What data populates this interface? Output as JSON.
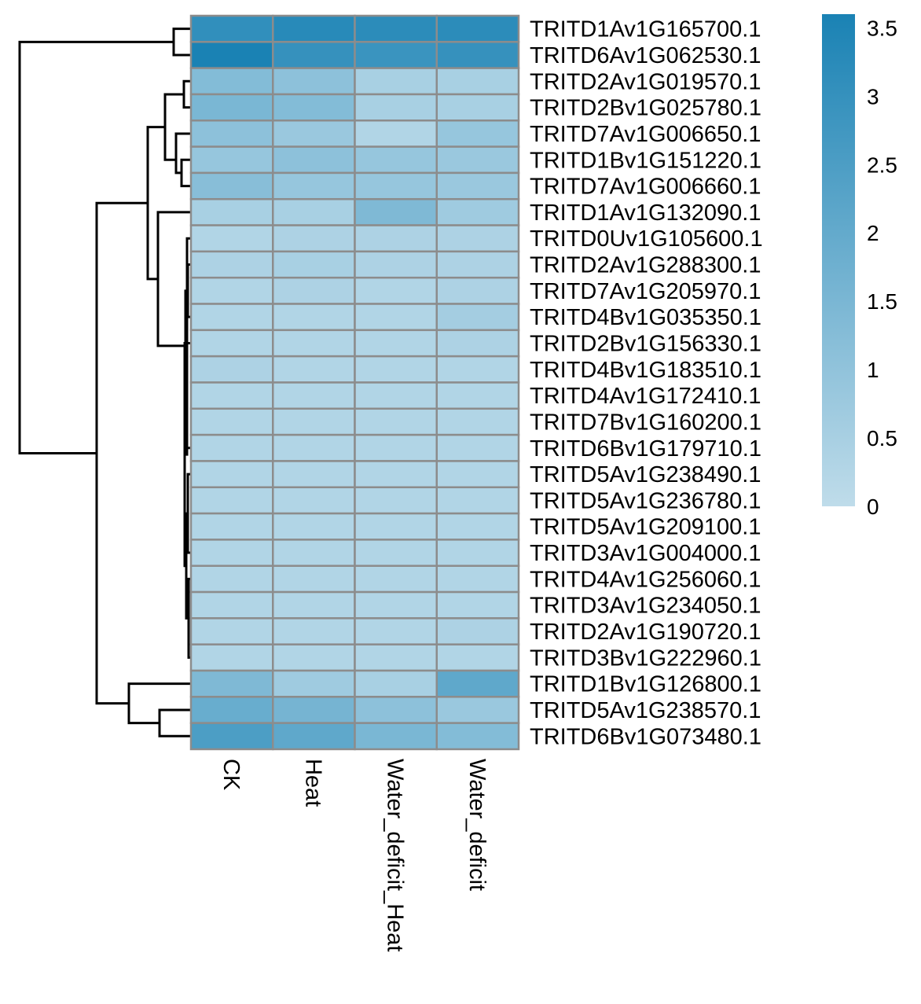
{
  "chart_data": {
    "type": "heatmap",
    "title": "",
    "columns": [
      "CK",
      "Heat",
      "Water_deficit_Heat",
      "Water_deficit"
    ],
    "rows": [
      "TRITD1Av1G165700.1",
      "TRITD6Av1G062530.1",
      "TRITD2Av1G019570.1",
      "TRITD2Bv1G025780.1",
      "TRITD7Av1G006650.1",
      "TRITD1Bv1G151220.1",
      "TRITD7Av1G006660.1",
      "TRITD1Av1G132090.1",
      "TRITD0Uv1G105600.1",
      "TRITD2Av1G288300.1",
      "TRITD7Av1G205970.1",
      "TRITD4Bv1G035350.1",
      "TRITD2Bv1G156330.1",
      "TRITD4Bv1G183510.1",
      "TRITD4Av1G172410.1",
      "TRITD7Bv1G160200.1",
      "TRITD6Bv1G179710.1",
      "TRITD5Av1G238490.1",
      "TRITD5Av1G236780.1",
      "TRITD5Av1G209100.1",
      "TRITD3Av1G004000.1",
      "TRITD4Av1G256060.1",
      "TRITD3Av1G234050.1",
      "TRITD2Av1G190720.1",
      "TRITD3Bv1G222960.1",
      "TRITD1Bv1G126800.1",
      "TRITD5Av1G238570.1",
      "TRITD6Bv1G073480.1"
    ],
    "values": [
      [
        3.1,
        3.3,
        3.2,
        3.2
      ],
      [
        3.6,
        3.0,
        2.9,
        3.0
      ],
      [
        1.3,
        1.1,
        0.5,
        0.5
      ],
      [
        1.5,
        1.3,
        0.5,
        0.5
      ],
      [
        1.1,
        0.8,
        0.3,
        0.9
      ],
      [
        0.9,
        1.1,
        0.9,
        0.8
      ],
      [
        1.2,
        0.9,
        0.9,
        0.8
      ],
      [
        0.5,
        0.5,
        1.4,
        0.7
      ],
      [
        0.3,
        0.4,
        0.4,
        0.4
      ],
      [
        0.4,
        0.5,
        0.4,
        0.4
      ],
      [
        0.3,
        0.4,
        0.3,
        0.4
      ],
      [
        0.3,
        0.3,
        0.3,
        0.6
      ],
      [
        0.3,
        0.3,
        0.3,
        0.4
      ],
      [
        0.4,
        0.3,
        0.3,
        0.3
      ],
      [
        0.3,
        0.3,
        0.3,
        0.3
      ],
      [
        0.3,
        0.3,
        0.3,
        0.3
      ],
      [
        0.3,
        0.3,
        0.3,
        0.3
      ],
      [
        0.3,
        0.3,
        0.3,
        0.3
      ],
      [
        0.3,
        0.3,
        0.3,
        0.3
      ],
      [
        0.3,
        0.3,
        0.3,
        0.3
      ],
      [
        0.3,
        0.3,
        0.3,
        0.3
      ],
      [
        0.3,
        0.3,
        0.3,
        0.3
      ],
      [
        0.3,
        0.3,
        0.3,
        0.3
      ],
      [
        0.3,
        0.3,
        0.3,
        0.4
      ],
      [
        0.3,
        0.3,
        0.3,
        0.3
      ],
      [
        1.4,
        0.7,
        0.5,
        2.1
      ],
      [
        1.9,
        1.6,
        1.1,
        0.8
      ],
      [
        2.5,
        2.1,
        1.5,
        1.3
      ]
    ],
    "color_scale": {
      "min": 0,
      "max": 3.6,
      "low_color": "#bfdcea",
      "high_color": "#1a82b4",
      "ticks": [
        0,
        0.5,
        1,
        1.5,
        2,
        2.5,
        3,
        3.5
      ],
      "tick_labels": [
        "0",
        "0.5",
        "1",
        "1.5",
        "2",
        "2.5",
        "3",
        "3.5"
      ]
    },
    "cell_border_color": "#8c8c8c",
    "row_dendrogram": true,
    "legend_position": "top-right"
  }
}
